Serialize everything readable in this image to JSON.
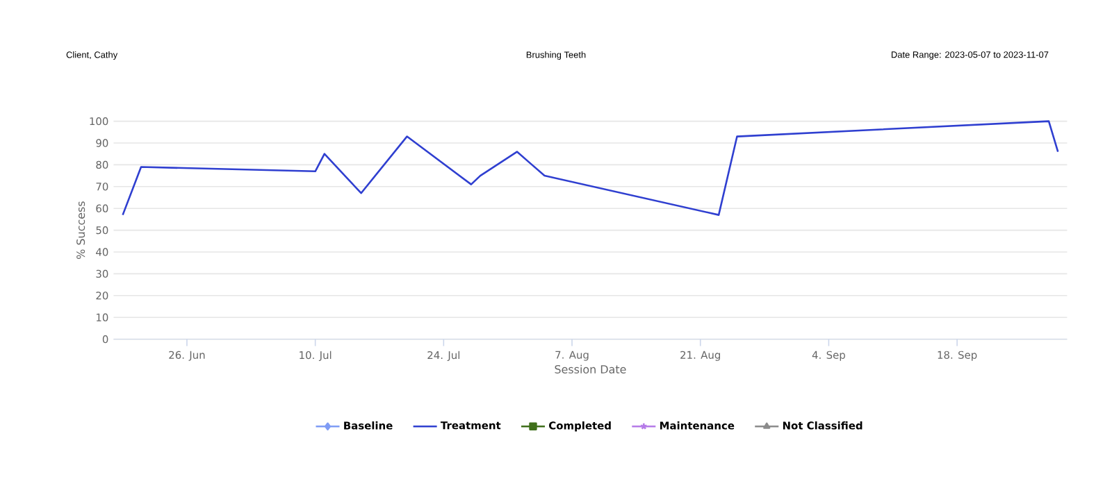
{
  "chart_data": {
    "type": "line",
    "title": "Brushing Teeth",
    "annotations": [
      "Client, Cathy",
      "Date Range: 2023-05-07 to 2023-11-07"
    ],
    "xlabel": "Session Date",
    "ylabel": "% Success",
    "x": [
      "2023-06-19",
      "2023-06-21",
      "2023-07-10",
      "2023-07-11",
      "2023-07-15",
      "2023-07-20",
      "2023-07-27",
      "2023-07-28",
      "2023-08-01",
      "2023-08-04",
      "2023-08-23",
      "2023-08-25",
      "2023-09-28",
      "2023-09-29"
    ],
    "series": [
      {
        "name": "Baseline",
        "color": "#7f9cf5",
        "marker": "diamond",
        "values": [
          null,
          null,
          null,
          null,
          null,
          null,
          null,
          null,
          null,
          null,
          null,
          null,
          null,
          null
        ]
      },
      {
        "name": "Treatment",
        "color": "#2f3fd0",
        "marker": "none",
        "values": [
          57,
          79,
          77,
          85,
          67,
          93,
          71,
          75,
          86,
          75,
          57,
          93,
          100,
          86
        ]
      },
      {
        "name": "Completed",
        "color": "#3f6f1a",
        "marker": "square",
        "values": [
          null,
          null,
          null,
          null,
          null,
          null,
          null,
          null,
          null,
          null,
          null,
          null,
          null,
          null
        ]
      },
      {
        "name": "Maintenance",
        "color": "#b57be8",
        "marker": "star",
        "values": [
          null,
          null,
          null,
          null,
          null,
          null,
          null,
          null,
          null,
          null,
          null,
          null,
          null,
          null
        ]
      },
      {
        "name": "Not Classified",
        "color": "#8c8c8c",
        "marker": "triangle",
        "values": [
          null,
          null,
          null,
          null,
          null,
          null,
          null,
          null,
          null,
          null,
          null,
          null,
          null,
          null
        ]
      }
    ],
    "xlim": [
      "2023-06-18",
      "2023-09-30"
    ],
    "xticks": [
      {
        "value": "2023-06-26",
        "label": "26. Jun"
      },
      {
        "value": "2023-07-10",
        "label": "10. Jul"
      },
      {
        "value": "2023-07-24",
        "label": "24. Jul"
      },
      {
        "value": "2023-08-07",
        "label": "7. Aug"
      },
      {
        "value": "2023-08-21",
        "label": "21. Aug"
      },
      {
        "value": "2023-09-04",
        "label": "4. Sep"
      },
      {
        "value": "2023-09-18",
        "label": "18. Sep"
      }
    ],
    "ylim": [
      0,
      100
    ],
    "yticks": [
      0,
      10,
      20,
      30,
      40,
      50,
      60,
      70,
      80,
      90,
      100
    ],
    "grid": "y",
    "legend": "bottom",
    "line_style": "solid"
  }
}
